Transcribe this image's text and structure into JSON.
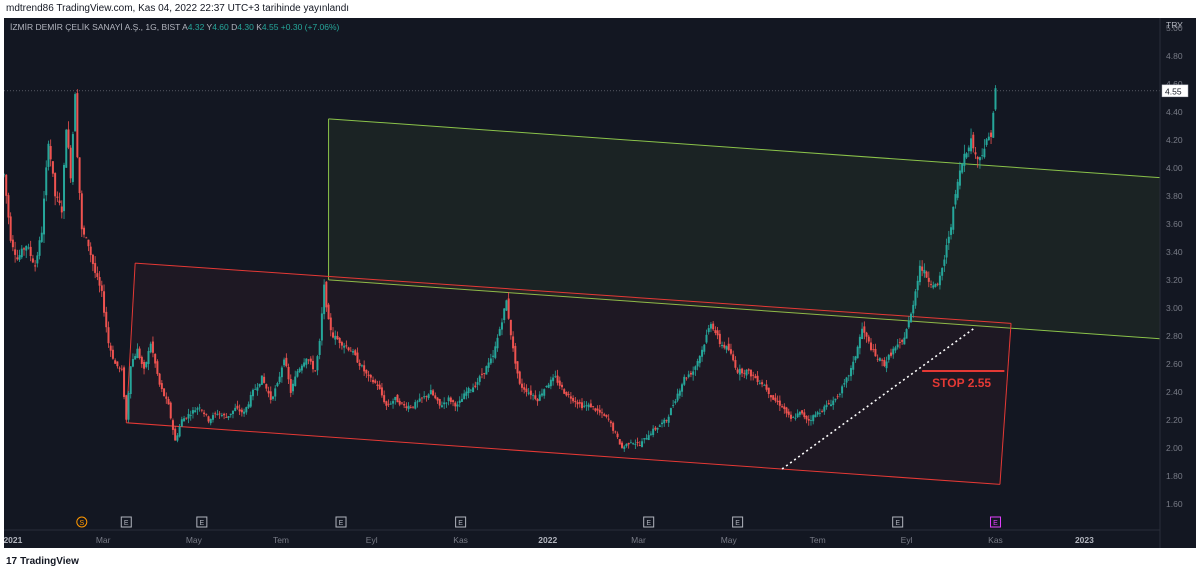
{
  "header": {
    "publish_line": "mdtrend86 TradingView.com, Kas 04, 2022 22:37 UTC+3 tarihinde yayınlandı"
  },
  "legend": {
    "symbol": "İZMİR DEMİR ÇELİK SANAYİ A.Ş., 1G, BIST",
    "open_label": "A",
    "open": "4.32",
    "high_label": "Y",
    "high": "4.60",
    "low_label": "D",
    "low": "4.30",
    "close_label": "K",
    "close": "4.55",
    "change": "+0.30 (+7.06%)"
  },
  "footer": {
    "logo_mark": "17",
    "logo_text": "TradingView"
  },
  "colors": {
    "up": "#26a69a",
    "down": "#ef5350",
    "background": "#131722",
    "green_channel": "#8bc34a",
    "red_channel": "#e53935"
  },
  "chart_data": {
    "type": "candlestick",
    "currency_label": "TRY",
    "y_ticks": [
      "5.00",
      "4.80",
      "4.60",
      "4.40",
      "4.20",
      "4.00",
      "3.80",
      "3.60",
      "3.40",
      "3.20",
      "3.00",
      "2.80",
      "2.60",
      "2.40",
      "2.20",
      "2.00",
      "1.80",
      "1.60"
    ],
    "ylim": [
      1.5,
      5.07
    ],
    "last_price_label": "4.55",
    "last_price": 4.55,
    "x_ticks": [
      {
        "label": "2021",
        "t": 0.9
      },
      {
        "label": "Mar",
        "t": 2.93
      },
      {
        "label": "May",
        "t": 4.97
      },
      {
        "label": "Tem",
        "t": 6.93
      },
      {
        "label": "Eyl",
        "t": 8.97
      },
      {
        "label": "Kas",
        "t": 10.97
      },
      {
        "label": "2022",
        "t": 12.93
      },
      {
        "label": "Mar",
        "t": 14.97
      },
      {
        "label": "May",
        "t": 17.0
      },
      {
        "label": "Tem",
        "t": 19.0
      },
      {
        "label": "Eyl",
        "t": 21.0
      },
      {
        "label": "Kas",
        "t": 23.0
      },
      {
        "label": "2023",
        "t": 25.0
      }
    ],
    "x_unit": "months since Dec 2020",
    "xlim": [
      0.7,
      26.7
    ],
    "price_path": [
      [
        0.7,
        3.95
      ],
      [
        0.85,
        3.5
      ],
      [
        1.0,
        3.35
      ],
      [
        1.2,
        3.45
      ],
      [
        1.4,
        3.3
      ],
      [
        1.55,
        3.55
      ],
      [
        1.7,
        4.2
      ],
      [
        1.85,
        3.8
      ],
      [
        2.0,
        3.7
      ],
      [
        2.1,
        4.3
      ],
      [
        2.2,
        3.95
      ],
      [
        2.3,
        4.55
      ],
      [
        2.35,
        4.1
      ],
      [
        2.45,
        3.55
      ],
      [
        2.6,
        3.45
      ],
      [
        2.75,
        3.25
      ],
      [
        2.9,
        3.1
      ],
      [
        3.05,
        2.75
      ],
      [
        3.2,
        2.6
      ],
      [
        3.35,
        2.55
      ],
      [
        3.45,
        2.2
      ],
      [
        3.55,
        2.6
      ],
      [
        3.7,
        2.7
      ],
      [
        3.85,
        2.55
      ],
      [
        4.0,
        2.75
      ],
      [
        4.2,
        2.45
      ],
      [
        4.4,
        2.3
      ],
      [
        4.55,
        2.05
      ],
      [
        4.7,
        2.2
      ],
      [
        4.9,
        2.25
      ],
      [
        5.1,
        2.3
      ],
      [
        5.3,
        2.2
      ],
      [
        5.5,
        2.25
      ],
      [
        5.7,
        2.22
      ],
      [
        5.9,
        2.28
      ],
      [
        6.1,
        2.25
      ],
      [
        6.3,
        2.4
      ],
      [
        6.5,
        2.5
      ],
      [
        6.7,
        2.35
      ],
      [
        6.85,
        2.45
      ],
      [
        7.0,
        2.65
      ],
      [
        7.15,
        2.4
      ],
      [
        7.3,
        2.55
      ],
      [
        7.5,
        2.65
      ],
      [
        7.7,
        2.55
      ],
      [
        7.8,
        2.75
      ],
      [
        7.9,
        3.15
      ],
      [
        8.0,
        2.9
      ],
      [
        8.1,
        2.8
      ],
      [
        8.3,
        2.75
      ],
      [
        8.5,
        2.7
      ],
      [
        8.7,
        2.6
      ],
      [
        8.9,
        2.5
      ],
      [
        9.1,
        2.45
      ],
      [
        9.3,
        2.3
      ],
      [
        9.5,
        2.35
      ],
      [
        9.7,
        2.3
      ],
      [
        9.9,
        2.3
      ],
      [
        10.1,
        2.35
      ],
      [
        10.3,
        2.4
      ],
      [
        10.5,
        2.3
      ],
      [
        10.7,
        2.35
      ],
      [
        10.9,
        2.3
      ],
      [
        11.1,
        2.4
      ],
      [
        11.3,
        2.45
      ],
      [
        11.5,
        2.55
      ],
      [
        11.7,
        2.65
      ],
      [
        11.85,
        2.85
      ],
      [
        12.0,
        3.05
      ],
      [
        12.15,
        2.7
      ],
      [
        12.3,
        2.45
      ],
      [
        12.5,
        2.4
      ],
      [
        12.7,
        2.35
      ],
      [
        12.9,
        2.45
      ],
      [
        13.1,
        2.5
      ],
      [
        13.3,
        2.4
      ],
      [
        13.5,
        2.35
      ],
      [
        13.7,
        2.3
      ],
      [
        13.9,
        2.3
      ],
      [
        14.1,
        2.25
      ],
      [
        14.3,
        2.2
      ],
      [
        14.6,
        2.0
      ],
      [
        14.8,
        2.05
      ],
      [
        15.0,
        2.02
      ],
      [
        15.2,
        2.1
      ],
      [
        15.4,
        2.15
      ],
      [
        15.6,
        2.2
      ],
      [
        15.8,
        2.35
      ],
      [
        16.0,
        2.5
      ],
      [
        16.2,
        2.55
      ],
      [
        16.4,
        2.7
      ],
      [
        16.6,
        2.9
      ],
      [
        16.8,
        2.75
      ],
      [
        17.0,
        2.7
      ],
      [
        17.2,
        2.55
      ],
      [
        17.4,
        2.55
      ],
      [
        17.6,
        2.5
      ],
      [
        17.8,
        2.45
      ],
      [
        18.0,
        2.35
      ],
      [
        18.2,
        2.3
      ],
      [
        18.4,
        2.2
      ],
      [
        18.6,
        2.25
      ],
      [
        18.8,
        2.2
      ],
      [
        19.0,
        2.25
      ],
      [
        19.2,
        2.3
      ],
      [
        19.4,
        2.35
      ],
      [
        19.6,
        2.45
      ],
      [
        19.8,
        2.6
      ],
      [
        20.0,
        2.85
      ],
      [
        20.15,
        2.75
      ],
      [
        20.3,
        2.65
      ],
      [
        20.5,
        2.6
      ],
      [
        20.7,
        2.7
      ],
      [
        20.9,
        2.75
      ],
      [
        21.1,
        2.95
      ],
      [
        21.3,
        3.3
      ],
      [
        21.5,
        3.2
      ],
      [
        21.7,
        3.15
      ],
      [
        21.85,
        3.35
      ],
      [
        22.0,
        3.6
      ],
      [
        22.15,
        3.9
      ],
      [
        22.3,
        4.1
      ],
      [
        22.45,
        4.2
      ],
      [
        22.6,
        4.05
      ],
      [
        22.75,
        4.15
      ],
      [
        22.9,
        4.25
      ],
      [
        23.0,
        4.55
      ]
    ],
    "channels": [
      {
        "name": "",
        "color": "#8bc34a",
        "upper": [
          [
            8.0,
            4.35
          ],
          [
            26.7,
            3.93
          ]
        ],
        "lower": [
          [
            8.0,
            3.2
          ],
          [
            26.7,
            2.78
          ]
        ],
        "box": [
          [
            8.2,
            4.35
          ],
          [
            8.0,
            3.2
          ],
          [
            26.7,
            3.93
          ]
        ]
      },
      {
        "name": "",
        "color": "#e53935",
        "upper": [
          [
            3.65,
            3.32
          ],
          [
            23.35,
            2.89
          ]
        ],
        "lower": [
          [
            3.45,
            2.18
          ],
          [
            23.1,
            1.74
          ]
        ]
      }
    ],
    "trendline": {
      "from": [
        18.2,
        1.85
      ],
      "to": [
        22.5,
        2.85
      ],
      "style": "dotted"
    },
    "annotation": {
      "text": "STOP 2.55",
      "level": 2.55,
      "t_start": 21.35,
      "t_end": 23.2
    },
    "event_markers": [
      {
        "label": "S",
        "t": 2.45,
        "color": "#ff9800",
        "shape": "circle"
      },
      {
        "label": "E",
        "t": 3.45,
        "color": "#b2b5be",
        "shape": "square"
      },
      {
        "label": "E",
        "t": 5.15,
        "color": "#b2b5be",
        "shape": "square"
      },
      {
        "label": "E",
        "t": 8.28,
        "color": "#b2b5be",
        "shape": "square"
      },
      {
        "label": "E",
        "t": 10.97,
        "color": "#b2b5be",
        "shape": "square"
      },
      {
        "label": "E",
        "t": 15.2,
        "color": "#b2b5be",
        "shape": "square"
      },
      {
        "label": "E",
        "t": 17.2,
        "color": "#b2b5be",
        "shape": "square"
      },
      {
        "label": "E",
        "t": 20.8,
        "color": "#b2b5be",
        "shape": "square"
      },
      {
        "label": "E",
        "t": 23.0,
        "color": "#e040fb",
        "shape": "square"
      }
    ]
  }
}
